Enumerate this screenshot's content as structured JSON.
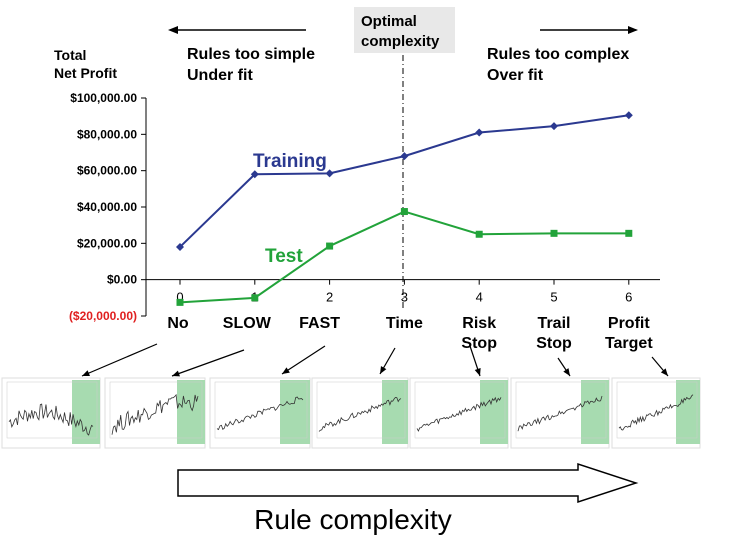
{
  "chart_data": {
    "type": "line",
    "ylabel_lines": [
      "Total",
      "Net Profit"
    ],
    "x": [
      0,
      1,
      2,
      3,
      4,
      5,
      6
    ],
    "x_tick_labels": [
      "0",
      "1",
      "2",
      "3",
      "4",
      "5",
      "6"
    ],
    "ylim": [
      -20000,
      100000
    ],
    "y_ticks": [
      100000,
      80000,
      60000,
      40000,
      20000,
      0,
      -20000
    ],
    "y_tick_labels": [
      "$100,000.00",
      "$80,000.00",
      "$60,000.00",
      "$40,000.00",
      "$20,000.00",
      "$0.00",
      "($20,000.00)"
    ],
    "grid": false,
    "series": [
      {
        "name": "Training",
        "color": "#2b3990",
        "marker": "diamond",
        "values": [
          18000,
          58000,
          58500,
          68000,
          81000,
          84500,
          90500
        ]
      },
      {
        "name": "Test",
        "color": "#22a33a",
        "marker": "square",
        "values": [
          -12500,
          -10000,
          18500,
          37500,
          25000,
          25500,
          25500
        ]
      }
    ],
    "annotations": {
      "left_lines": [
        "Rules too simple",
        "Under fit"
      ],
      "center_lines": [
        "Optimal",
        "complexity"
      ],
      "right_lines": [
        "Rules too complex",
        "Over fit"
      ]
    },
    "rule_labels": [
      [
        "No"
      ],
      [
        "SLOW"
      ],
      [
        "FAST"
      ],
      [
        "Time"
      ],
      [
        "Risk",
        "Stop"
      ],
      [
        "Trail",
        "Stop"
      ],
      [
        "Profit",
        "Target"
      ]
    ],
    "footer": "Rule complexity",
    "colors": {
      "negative_tick": "#e02020",
      "highlight": "#a7dbb0",
      "axis": "#000000"
    }
  }
}
